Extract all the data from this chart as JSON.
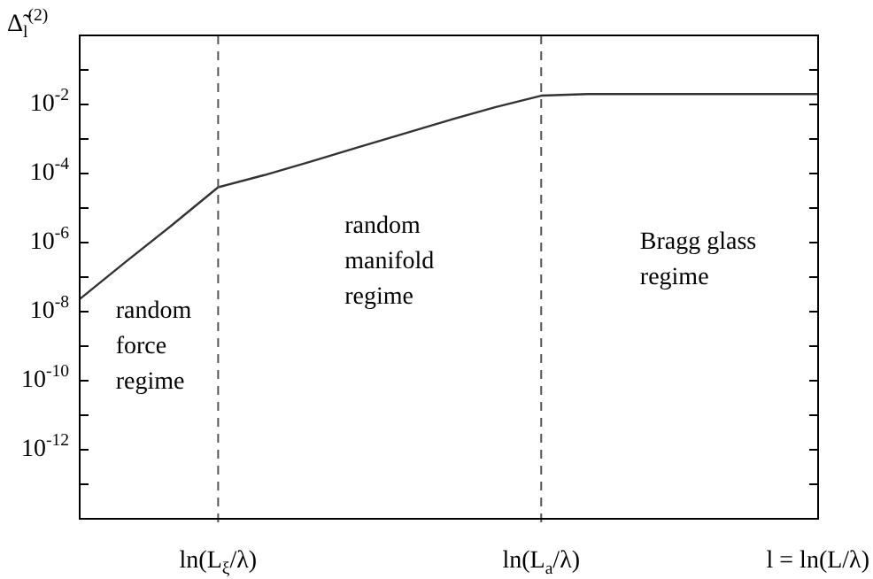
{
  "chart_data": {
    "type": "line",
    "ylabel": "Δ̃$_{l}$$^{(2)}$",
    "xlabel": "l = ln(L/λ)",
    "log": "y",
    "grid": false,
    "legend": false,
    "marker": "none",
    "line_style": "solid",
    "categories": [
      null,
      null,
      null,
      "ln(L$_{ξ}$/λ)",
      null,
      null,
      null,
      null,
      null,
      null,
      "ln(L$_{a}$/λ)",
      null,
      null,
      null,
      null,
      null,
      null
    ],
    "series": [
      {
        "color": "#333333",
        "values": [
          2.3e-08,
          2.8e-07,
          3.2e-06,
          4e-05,
          9e-05,
          0.00022,
          0.00056,
          0.0014,
          0.0035,
          0.0083,
          0.018,
          0.02,
          0.02,
          0.02,
          0.02,
          0.02,
          0.02
        ]
      }
    ],
    "ylim": [
      1e-14,
      1
    ],
    "yticks": [
      {
        "value": 1e-13,
        "label": null
      },
      {
        "value": 1e-12,
        "label": "10$^{-12}$"
      },
      {
        "value": 1e-11,
        "label": null
      },
      {
        "value": 1e-10,
        "label": "10$^{-10}$"
      },
      {
        "value": 1e-09,
        "label": null
      },
      {
        "value": 1e-08,
        "label": "10$^{-8}$"
      },
      {
        "value": 1e-07,
        "label": null
      },
      {
        "value": 1e-06,
        "label": "10$^{-6}$"
      },
      {
        "value": 1e-05,
        "label": null
      },
      {
        "value": 0.0001,
        "label": "10$^{-4}$"
      },
      {
        "value": 0.001,
        "label": null
      },
      {
        "value": 0.01,
        "label": "10$^{-2}$"
      },
      {
        "value": 0.1,
        "label": null
      }
    ],
    "ref_lines": [
      {
        "axis": "x",
        "value": "ln(L$_{ξ}$/λ)",
        "color": "#555555",
        "line_style": "dashed"
      },
      {
        "axis": "x",
        "value": "ln(L$_{a}$/λ)",
        "color": "#555555",
        "line_style": "dashed"
      }
    ],
    "annotations": [
      "random force regime",
      "random manifold regime",
      "Bragg glass regime"
    ]
  }
}
